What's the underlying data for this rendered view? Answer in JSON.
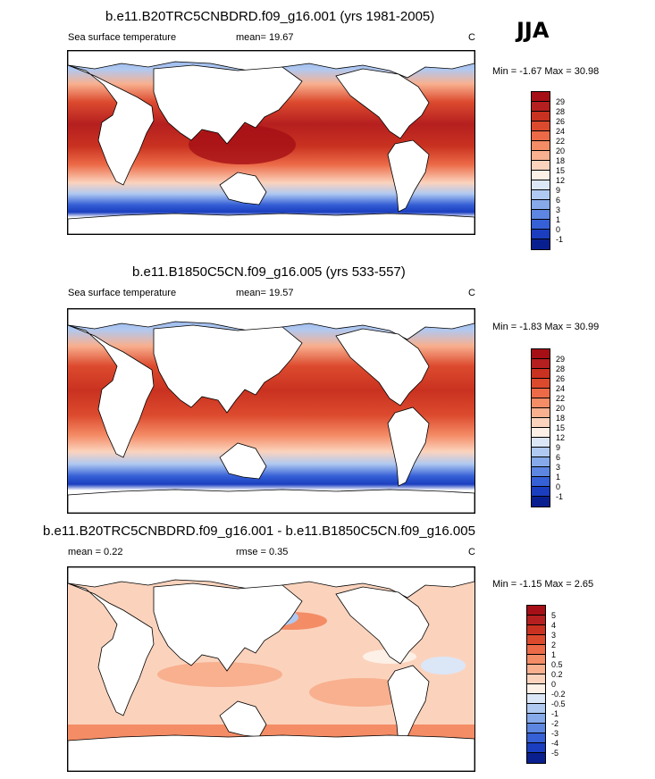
{
  "season": "JJA",
  "panels": [
    {
      "title": "b.e11.B20TRC5CNBDRD.f09_g16.001 (yrs 1981-2005)",
      "variable": "Sea surface temperature",
      "stat": "mean=  19.67",
      "units": "C",
      "minmax": "Min =  -1.67 Max =  30.98",
      "legend_labels": [
        "29",
        "28",
        "26",
        "24",
        "22",
        "20",
        "18",
        "15",
        "12",
        "9",
        "6",
        "3",
        "1",
        "0",
        "-1"
      ],
      "colors": [
        "#a50f15",
        "#b51f1f",
        "#c93220",
        "#dc4a2e",
        "#ec6a47",
        "#f48c66",
        "#f8b08f",
        "#fbd3bd",
        "#fdf0e6",
        "#dbe6f7",
        "#b0c9f1",
        "#86a9ea",
        "#5c86e1",
        "#3660d6",
        "#1a3ebf",
        "#0a1f8f"
      ]
    },
    {
      "title": "b.e11.B1850C5CN.f09_g16.005 (yrs 533-557)",
      "variable": "Sea surface temperature",
      "stat": "mean=  19.57",
      "units": "C",
      "minmax": "Min =  -1.83 Max =  30.99",
      "legend_labels": [
        "29",
        "28",
        "26",
        "24",
        "22",
        "20",
        "18",
        "15",
        "12",
        "9",
        "6",
        "3",
        "1",
        "0",
        "-1"
      ],
      "colors": [
        "#a50f15",
        "#b51f1f",
        "#c93220",
        "#dc4a2e",
        "#ec6a47",
        "#f48c66",
        "#f8b08f",
        "#fbd3bd",
        "#fdf0e6",
        "#dbe6f7",
        "#b0c9f1",
        "#86a9ea",
        "#5c86e1",
        "#3660d6",
        "#1a3ebf",
        "#0a1f8f"
      ]
    },
    {
      "title": "b.e11.B20TRC5CNBDRD.f09_g16.001 - b.e11.B1850C5CN.f09_g16.005",
      "stat": "mean =   0.22",
      "rmse": "rmse =   0.35",
      "units": "C",
      "minmax": "Min =  -1.15 Max =   2.65",
      "legend_labels": [
        "5",
        "4",
        "3",
        "2",
        "1",
        "0.5",
        "0.2",
        "0",
        "-0.2",
        "-0.5",
        "-1",
        "-2",
        "-3",
        "-4",
        "-5"
      ],
      "colors": [
        "#a50f15",
        "#b51f1f",
        "#c93220",
        "#dc4a2e",
        "#ec6a47",
        "#f48c66",
        "#f8b08f",
        "#fbd3bd",
        "#fdf0e6",
        "#dbe6f7",
        "#b0c9f1",
        "#86a9ea",
        "#5c86e1",
        "#3660d6",
        "#1a3ebf",
        "#0a1f8f"
      ]
    }
  ]
}
